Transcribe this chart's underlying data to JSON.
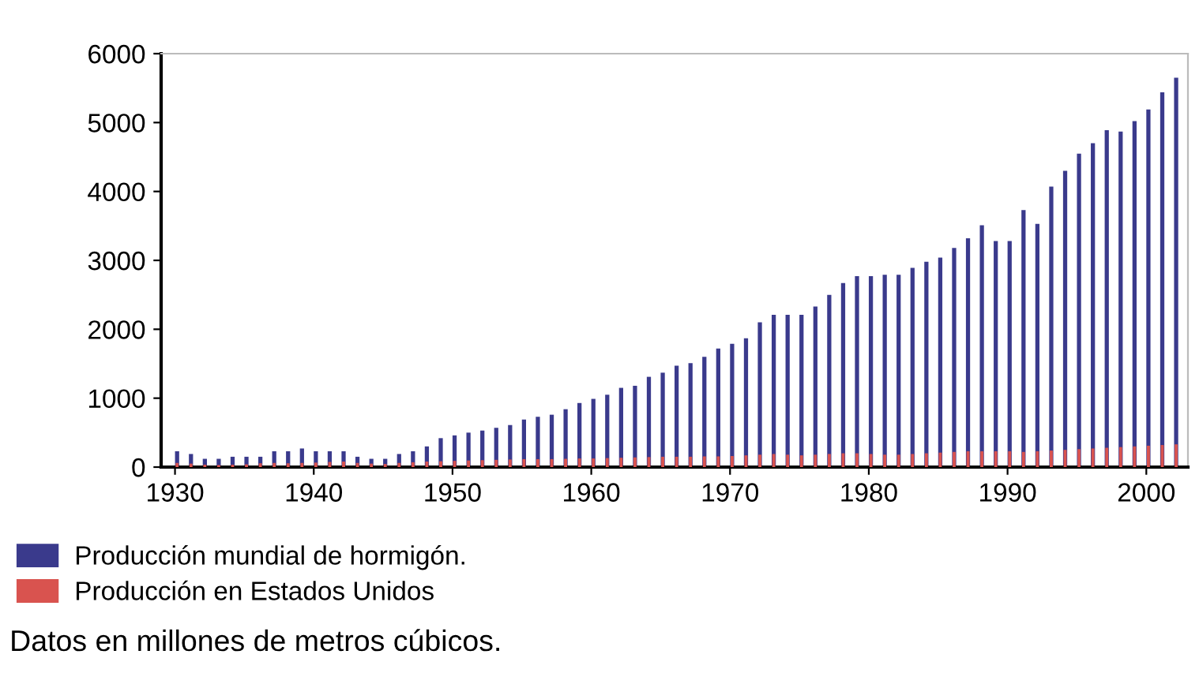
{
  "chart_data": {
    "type": "bar",
    "x": [
      1930,
      1931,
      1932,
      1933,
      1934,
      1935,
      1936,
      1937,
      1938,
      1939,
      1940,
      1941,
      1942,
      1943,
      1944,
      1945,
      1946,
      1947,
      1948,
      1949,
      1950,
      1951,
      1952,
      1953,
      1954,
      1955,
      1956,
      1957,
      1958,
      1959,
      1960,
      1961,
      1962,
      1963,
      1964,
      1965,
      1966,
      1967,
      1968,
      1969,
      1970,
      1971,
      1972,
      1973,
      1974,
      1975,
      1976,
      1977,
      1978,
      1979,
      1980,
      1981,
      1982,
      1983,
      1984,
      1985,
      1986,
      1987,
      1988,
      1989,
      1990,
      1991,
      1992,
      1993,
      1994,
      1995,
      1996,
      1997,
      1998,
      1999,
      2000,
      2001,
      2002
    ],
    "series": [
      {
        "name": "Producción mundial de hormigón.",
        "color": "#3a3a8c",
        "values": [
          230,
          190,
          120,
          120,
          150,
          150,
          150,
          230,
          230,
          270,
          230,
          230,
          230,
          150,
          120,
          120,
          190,
          230,
          300,
          420,
          460,
          500,
          530,
          570,
          610,
          690,
          730,
          760,
          840,
          930,
          990,
          1050,
          1150,
          1180,
          1310,
          1370,
          1470,
          1510,
          1600,
          1720,
          1790,
          1870,
          2100,
          2210,
          2210,
          2210,
          2330,
          2500,
          2670,
          2770,
          2770,
          2790,
          2790,
          2890,
          2980,
          3040,
          3180,
          3320,
          3510,
          3280,
          3280,
          3730,
          3530,
          4070,
          4300,
          4550,
          4700,
          4890,
          4870,
          5020,
          5190,
          5440,
          5650
        ]
      },
      {
        "name": "Producción en Estados Unidos",
        "color": "#d9534f",
        "values": [
          60,
          50,
          35,
          30,
          35,
          40,
          55,
          60,
          55,
          60,
          65,
          75,
          80,
          60,
          50,
          45,
          60,
          70,
          80,
          85,
          90,
          95,
          100,
          105,
          110,
          115,
          115,
          115,
          120,
          125,
          125,
          130,
          135,
          140,
          145,
          150,
          150,
          150,
          155,
          155,
          160,
          170,
          180,
          190,
          180,
          170,
          180,
          190,
          200,
          200,
          190,
          180,
          180,
          190,
          200,
          210,
          220,
          230,
          230,
          230,
          230,
          220,
          230,
          240,
          250,
          260,
          270,
          280,
          290,
          300,
          310,
          320,
          330
        ]
      }
    ],
    "xlim": [
      1929,
      2003
    ],
    "xticks": [
      1930,
      1940,
      1950,
      1960,
      1970,
      1980,
      1990,
      2000
    ],
    "ylim": [
      0,
      6000
    ],
    "yticks": [
      0,
      1000,
      2000,
      3000,
      4000,
      5000,
      6000
    ],
    "legend": "bottom",
    "grid": false,
    "annotations": [
      "Datos en millones de metros cúbicos."
    ]
  }
}
